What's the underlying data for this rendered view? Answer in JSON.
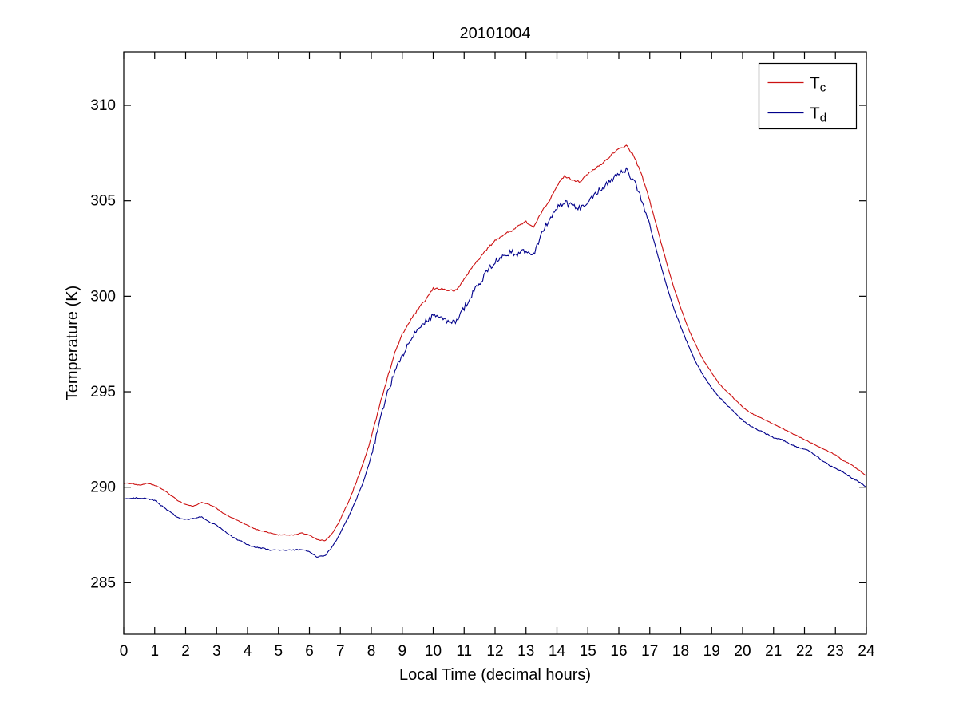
{
  "chart_data": {
    "type": "line",
    "title": "20101004",
    "xlabel": "Local Time (decimal hours)",
    "ylabel": "Temperature (K)",
    "xlim": [
      0,
      24
    ],
    "ylim": [
      282.3,
      312.8
    ],
    "xticks": [
      0,
      1,
      2,
      3,
      4,
      5,
      6,
      7,
      8,
      9,
      10,
      11,
      12,
      13,
      14,
      15,
      16,
      17,
      18,
      19,
      20,
      21,
      22,
      23,
      24
    ],
    "yticks": [
      285,
      290,
      295,
      300,
      305,
      310
    ],
    "grid": false,
    "legend_position": "top-right",
    "axis_color": "#000000",
    "background_color": "#ffffff",
    "x": [
      0,
      0.25,
      0.5,
      0.75,
      1,
      1.25,
      1.5,
      1.75,
      2,
      2.25,
      2.5,
      2.75,
      3,
      3.25,
      3.5,
      3.75,
      4,
      4.25,
      4.5,
      4.75,
      5,
      5.25,
      5.5,
      5.75,
      6,
      6.25,
      6.5,
      6.75,
      7,
      7.25,
      7.5,
      7.75,
      8,
      8.25,
      8.5,
      8.75,
      9,
      9.25,
      9.5,
      9.75,
      10,
      10.25,
      10.5,
      10.75,
      11,
      11.25,
      11.5,
      11.75,
      12,
      12.25,
      12.5,
      12.75,
      13,
      13.25,
      13.5,
      13.75,
      14,
      14.25,
      14.5,
      14.75,
      15,
      15.25,
      15.5,
      15.75,
      16,
      16.25,
      16.5,
      16.75,
      17,
      17.25,
      17.5,
      17.75,
      18,
      18.25,
      18.5,
      18.75,
      19,
      19.25,
      19.5,
      19.75,
      20,
      20.25,
      20.5,
      20.75,
      21,
      21.25,
      21.5,
      21.75,
      22,
      22.25,
      22.5,
      22.75,
      23,
      23.25,
      23.5,
      23.75,
      24
    ],
    "series": [
      {
        "name": "Tc",
        "label_main": "T",
        "label_sub": "c",
        "color": "#cc1111",
        "values": [
          290.2,
          290.2,
          290.1,
          290.2,
          290.1,
          289.9,
          289.6,
          289.3,
          289.1,
          289.0,
          289.2,
          289.1,
          288.9,
          288.6,
          288.4,
          288.2,
          288.0,
          287.8,
          287.7,
          287.6,
          287.5,
          287.5,
          287.5,
          287.6,
          287.5,
          287.25,
          287.2,
          287.6,
          288.3,
          289.2,
          290.2,
          291.3,
          292.6,
          294.2,
          295.6,
          297.0,
          298.0,
          298.7,
          299.3,
          299.8,
          300.4,
          300.4,
          300.3,
          300.3,
          300.9,
          301.5,
          302.0,
          302.5,
          302.9,
          303.2,
          303.4,
          303.7,
          303.9,
          303.6,
          304.4,
          305.0,
          305.8,
          306.3,
          306.1,
          306.0,
          306.4,
          306.7,
          307.0,
          307.4,
          307.7,
          307.9,
          307.3,
          306.3,
          305.0,
          303.5,
          302.0,
          300.6,
          299.4,
          298.3,
          297.4,
          296.6,
          296.0,
          295.4,
          295.0,
          294.6,
          294.2,
          293.9,
          293.7,
          293.5,
          293.3,
          293.1,
          292.9,
          292.7,
          292.5,
          292.3,
          292.1,
          291.9,
          291.7,
          291.4,
          291.2,
          290.9,
          290.6
        ],
        "noise": {
          "base": 0.02,
          "active": 0.05,
          "range": [
            7.0,
            17.5
          ]
        }
      },
      {
        "name": "Td",
        "label_main": "T",
        "label_sub": "d",
        "color": "#00008b",
        "values": [
          289.4,
          289.4,
          289.45,
          289.4,
          289.3,
          289.0,
          288.7,
          288.4,
          288.3,
          288.35,
          288.45,
          288.2,
          288.0,
          287.7,
          287.4,
          287.2,
          287.0,
          286.85,
          286.8,
          286.7,
          286.7,
          286.7,
          286.7,
          286.75,
          286.6,
          286.35,
          286.4,
          286.9,
          287.6,
          288.4,
          289.3,
          290.3,
          291.6,
          293.3,
          294.8,
          296.0,
          296.9,
          297.6,
          298.3,
          298.7,
          299.0,
          298.9,
          298.6,
          298.7,
          299.4,
          300.1,
          300.7,
          301.3,
          301.8,
          302.1,
          302.3,
          302.2,
          302.4,
          302.2,
          303.3,
          304.0,
          304.6,
          304.9,
          304.7,
          304.6,
          305.0,
          305.4,
          305.7,
          306.1,
          306.4,
          306.6,
          306.0,
          305.0,
          303.7,
          302.2,
          300.8,
          299.5,
          298.4,
          297.4,
          296.5,
          295.8,
          295.2,
          294.7,
          294.3,
          293.9,
          293.5,
          293.2,
          293.0,
          292.8,
          292.6,
          292.5,
          292.3,
          292.1,
          292.0,
          291.8,
          291.5,
          291.2,
          291.0,
          290.8,
          290.5,
          290.3,
          290.0
        ],
        "noise": {
          "base": 0.03,
          "active": 0.15,
          "range": [
            8.0,
            17.0
          ]
        }
      }
    ]
  }
}
